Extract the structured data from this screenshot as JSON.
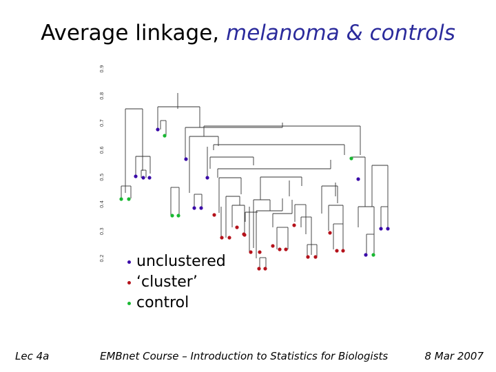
{
  "slide": {
    "title_plain": "Average linkage,",
    "title_accent": "melanoma & controls",
    "footer_left": "Lec 4a",
    "footer_center": "EMBnet Course – Introduction to Statistics for Biologists",
    "footer_right": "8 Mar 2007"
  },
  "colors": {
    "unclustered": "#3a0aa8",
    "cluster": "#b5121b",
    "control": "#19b832",
    "title_accent": "#2b2b9c",
    "tree_line": "#333333"
  },
  "legend": [
    {
      "key": "unclustered",
      "label": "unclustered"
    },
    {
      "key": "cluster",
      "label": "‘cluster’"
    },
    {
      "key": "control",
      "label": "control"
    }
  ],
  "dendrogram": {
    "height_axis": {
      "ticks": [
        "0.2",
        "0.3",
        "0.4",
        "0.5",
        "0.6",
        "0.7",
        "0.8",
        "0.9"
      ],
      "range": [
        0.2,
        0.9
      ]
    },
    "leaves": [
      {
        "group": "control"
      },
      {
        "group": "control"
      },
      {
        "group": "unclustered"
      },
      {
        "group": "unclustered"
      },
      {
        "group": "unclustered"
      },
      {
        "group": "unclustered"
      },
      {
        "group": "control"
      },
      {
        "group": "control"
      },
      {
        "group": "control"
      },
      {
        "group": "unclustered"
      },
      {
        "group": "unclustered"
      },
      {
        "group": "unclustered"
      },
      {
        "group": "unclustered"
      },
      {
        "group": "cluster"
      },
      {
        "group": "cluster"
      },
      {
        "group": "cluster"
      },
      {
        "group": "cluster"
      },
      {
        "group": "cluster"
      },
      {
        "group": "cluster"
      },
      {
        "group": "cluster"
      },
      {
        "group": "cluster"
      },
      {
        "group": "cluster"
      },
      {
        "group": "cluster"
      },
      {
        "group": "cluster"
      },
      {
        "group": "cluster"
      },
      {
        "group": "cluster"
      },
      {
        "group": "cluster"
      },
      {
        "group": "cluster"
      },
      {
        "group": "cluster"
      },
      {
        "group": "cluster"
      },
      {
        "group": "cluster"
      },
      {
        "group": "cluster"
      },
      {
        "group": "control"
      },
      {
        "group": "unclustered"
      },
      {
        "group": "unclustered"
      },
      {
        "group": "control"
      },
      {
        "group": "unclustered"
      },
      {
        "group": "unclustered"
      }
    ]
  }
}
